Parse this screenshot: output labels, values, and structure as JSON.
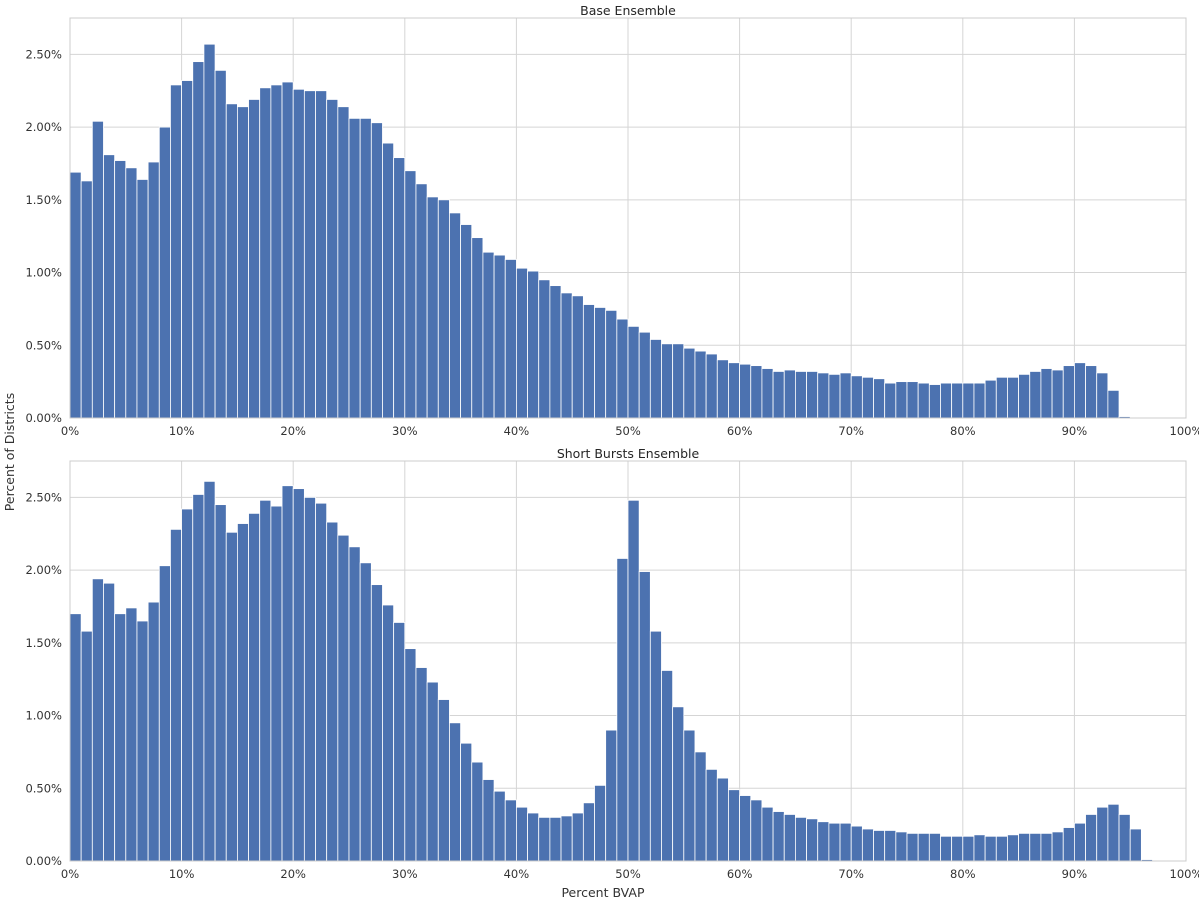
{
  "figure": {
    "ylabel": "Percent of Districts",
    "xlabel": "Percent BVAP"
  },
  "chart_data": [
    {
      "type": "bar",
      "title": "Base Ensemble",
      "xlabel": "",
      "ylabel": "Percent of Districts",
      "bin_width": 1,
      "x_start": 0,
      "xlim": [
        0,
        100
      ],
      "ylim": [
        0,
        2.75
      ],
      "xticks": [
        0,
        10,
        20,
        30,
        40,
        50,
        60,
        70,
        80,
        90,
        100
      ],
      "xtick_labels": [
        "0%",
        "10%",
        "20%",
        "30%",
        "40%",
        "50%",
        "60%",
        "70%",
        "80%",
        "90%",
        "100%"
      ],
      "yticks": [
        0,
        0.5,
        1.0,
        1.5,
        2.0,
        2.5
      ],
      "ytick_labels": [
        "0.00%",
        "0.50%",
        "1.00%",
        "1.50%",
        "2.00%",
        "2.50%"
      ],
      "grid": true,
      "bar_color": "#4c72b0",
      "values": [
        1.69,
        1.63,
        2.04,
        1.81,
        1.77,
        1.72,
        1.64,
        1.76,
        2.0,
        2.29,
        2.32,
        2.45,
        2.57,
        2.39,
        2.16,
        2.14,
        2.19,
        2.27,
        2.29,
        2.31,
        2.26,
        2.25,
        2.25,
        2.19,
        2.14,
        2.06,
        2.06,
        2.03,
        1.89,
        1.79,
        1.7,
        1.61,
        1.52,
        1.5,
        1.41,
        1.33,
        1.24,
        1.14,
        1.12,
        1.09,
        1.03,
        1.01,
        0.95,
        0.91,
        0.86,
        0.84,
        0.78,
        0.76,
        0.74,
        0.68,
        0.63,
        0.59,
        0.54,
        0.51,
        0.51,
        0.48,
        0.46,
        0.44,
        0.4,
        0.38,
        0.37,
        0.36,
        0.34,
        0.32,
        0.33,
        0.32,
        0.32,
        0.31,
        0.3,
        0.31,
        0.29,
        0.28,
        0.27,
        0.24,
        0.25,
        0.25,
        0.24,
        0.23,
        0.24,
        0.24,
        0.24,
        0.24,
        0.26,
        0.28,
        0.28,
        0.3,
        0.32,
        0.34,
        0.33,
        0.36,
        0.38,
        0.36,
        0.31,
        0.19,
        0.01,
        0,
        0,
        0,
        0,
        0
      ]
    },
    {
      "type": "bar",
      "title": "Short Bursts Ensemble",
      "xlabel": "Percent BVAP",
      "ylabel": "Percent of Districts",
      "bin_width": 1,
      "x_start": 0,
      "xlim": [
        0,
        100
      ],
      "ylim": [
        0,
        2.75
      ],
      "xticks": [
        0,
        10,
        20,
        30,
        40,
        50,
        60,
        70,
        80,
        90,
        100
      ],
      "xtick_labels": [
        "0%",
        "10%",
        "20%",
        "30%",
        "40%",
        "50%",
        "60%",
        "70%",
        "80%",
        "90%",
        "100%"
      ],
      "yticks": [
        0,
        0.5,
        1.0,
        1.5,
        2.0,
        2.5
      ],
      "ytick_labels": [
        "0.00%",
        "0.50%",
        "1.00%",
        "1.50%",
        "2.00%",
        "2.50%"
      ],
      "grid": true,
      "bar_color": "#4c72b0",
      "values": [
        1.7,
        1.58,
        1.94,
        1.91,
        1.7,
        1.74,
        1.65,
        1.78,
        2.03,
        2.28,
        2.42,
        2.52,
        2.61,
        2.45,
        2.26,
        2.32,
        2.39,
        2.48,
        2.44,
        2.58,
        2.56,
        2.5,
        2.46,
        2.33,
        2.24,
        2.16,
        2.05,
        1.9,
        1.76,
        1.64,
        1.46,
        1.33,
        1.23,
        1.11,
        0.95,
        0.81,
        0.68,
        0.56,
        0.48,
        0.42,
        0.37,
        0.33,
        0.3,
        0.3,
        0.31,
        0.33,
        0.4,
        0.52,
        0.9,
        2.08,
        2.48,
        1.99,
        1.58,
        1.31,
        1.06,
        0.9,
        0.75,
        0.63,
        0.57,
        0.49,
        0.45,
        0.42,
        0.37,
        0.34,
        0.32,
        0.3,
        0.29,
        0.27,
        0.26,
        0.26,
        0.24,
        0.22,
        0.21,
        0.21,
        0.2,
        0.19,
        0.19,
        0.19,
        0.17,
        0.17,
        0.17,
        0.18,
        0.17,
        0.17,
        0.18,
        0.19,
        0.19,
        0.19,
        0.2,
        0.23,
        0.26,
        0.32,
        0.37,
        0.39,
        0.32,
        0.22,
        0.01,
        0,
        0,
        0
      ]
    }
  ]
}
